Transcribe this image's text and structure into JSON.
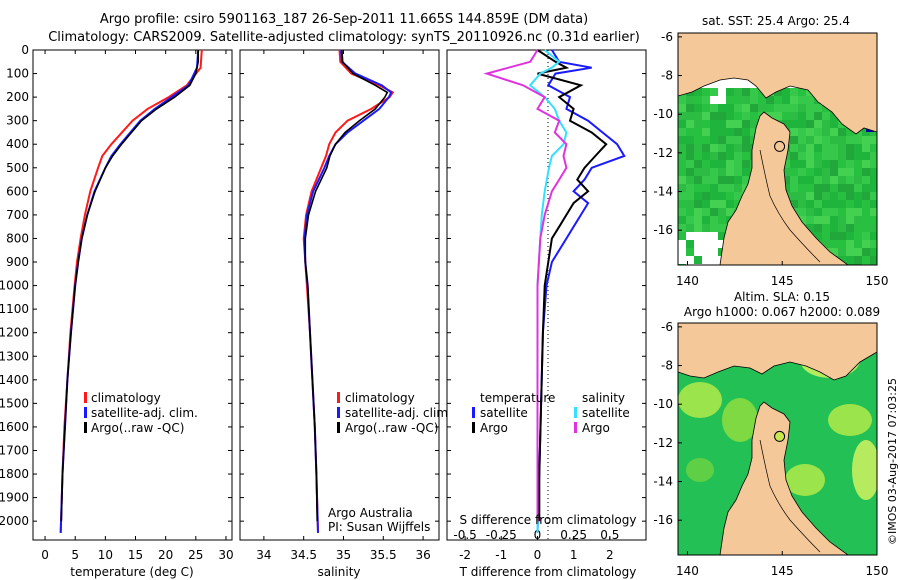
{
  "header": {
    "line1": "Argo profile: csiro 5901163_187 26-Sep-2011 11.665S 144.859E (DM data)",
    "line2": "Climatology: CARS2009. Satellite-adjusted climatology: synTS_20110926.nc (0.31d earlier)"
  },
  "colors": {
    "climatology": "#ff1a1a",
    "satellite": "#1a1aff",
    "argo": "#000000",
    "satellite_s": "#33e0ff",
    "argo_s": "#e033e0",
    "land": "#f5c89a",
    "sea_green": "#22c055",
    "sea_light": "#a8e84a"
  },
  "chart_data": [
    {
      "id": "temperature",
      "type": "line",
      "xlabel": "temperature (deg C)",
      "ylabel": "",
      "xlim": [
        -2,
        31
      ],
      "ylim": [
        2080,
        0
      ],
      "xticks": [
        0,
        5,
        10,
        15,
        20,
        25,
        30
      ],
      "yticks": [
        0,
        100,
        200,
        300,
        400,
        500,
        600,
        700,
        800,
        900,
        1000,
        1100,
        1200,
        1300,
        1400,
        1500,
        1600,
        1700,
        1800,
        1900,
        2000
      ],
      "legend": [
        "climatology",
        "satellite-adj. clim.",
        "Argo(..raw -QC)"
      ],
      "series": [
        {
          "name": "climatology",
          "depth": [
            0,
            75,
            150,
            200,
            250,
            300,
            400,
            450,
            500,
            600,
            700,
            800,
            900,
            1000,
            1200,
            1400,
            1600,
            1800,
            2050
          ],
          "values": [
            26,
            25.8,
            23.5,
            20.5,
            17,
            14.5,
            11,
            9.5,
            8.8,
            7.5,
            6.6,
            5.9,
            5.3,
            4.9,
            4.2,
            3.7,
            3.2,
            2.9,
            2.6
          ]
        },
        {
          "name": "satellite-adj. clim.",
          "depth": [
            0,
            75,
            150,
            200,
            250,
            300,
            400,
            450,
            500,
            600,
            700,
            800,
            900,
            1000,
            1200,
            1400,
            1600,
            1800,
            2050
          ],
          "values": [
            25.4,
            25.2,
            23.8,
            21,
            18.2,
            15.8,
            12.5,
            11,
            10,
            8.2,
            7,
            6.1,
            5.5,
            5,
            4.3,
            3.7,
            3.3,
            2.9,
            2.6
          ]
        },
        {
          "name": "Argo(..raw -QC)",
          "depth": [
            0,
            50,
            100,
            150,
            200,
            250,
            300,
            400,
            450,
            500,
            600,
            700,
            800,
            900,
            1000,
            1200,
            1400,
            1600,
            1800,
            2000
          ],
          "values": [
            25.4,
            25.4,
            25,
            24,
            21.5,
            18.5,
            16,
            12.7,
            11.2,
            10,
            8.3,
            7,
            6.1,
            5.5,
            5,
            4.3,
            3.7,
            3.3,
            2.9,
            2.7
          ]
        }
      ]
    },
    {
      "id": "salinity",
      "type": "line",
      "xlabel": "salinity",
      "xlim": [
        33.7,
        36.2
      ],
      "ylim": [
        2080,
        0
      ],
      "xticks": [
        34,
        34.5,
        35,
        35.5,
        36
      ],
      "legend": [
        "climatology",
        "satellite-adj. clim.",
        "Argo(..raw -QC)"
      ],
      "annotation": [
        "Argo Australia",
        "PI: Susan Wijffels"
      ],
      "series": [
        {
          "name": "climatology",
          "depth": [
            0,
            50,
            100,
            150,
            180,
            200,
            250,
            300,
            350,
            400,
            450,
            500,
            600,
            700,
            800,
            900,
            1000,
            1200,
            1400,
            1600,
            1800,
            2050
          ],
          "values": [
            34.95,
            34.96,
            35.1,
            35.45,
            35.62,
            35.58,
            35.35,
            35.05,
            34.9,
            34.82,
            34.78,
            34.72,
            34.6,
            34.53,
            34.5,
            34.52,
            34.54,
            34.58,
            34.61,
            34.64,
            34.66,
            34.68
          ]
        },
        {
          "name": "satellite-adj. clim.",
          "depth": [
            0,
            50,
            100,
            150,
            180,
            200,
            250,
            300,
            350,
            400,
            450,
            500,
            600,
            700,
            800,
            900,
            1000,
            1200,
            1400,
            1600,
            1800,
            2050
          ],
          "values": [
            34.97,
            34.98,
            35.15,
            35.48,
            35.6,
            35.57,
            35.45,
            35.25,
            35.05,
            34.9,
            34.82,
            34.76,
            34.62,
            34.54,
            34.51,
            34.52,
            34.55,
            34.58,
            34.61,
            34.64,
            34.66,
            34.68
          ]
        },
        {
          "name": "Argo(..raw -QC)",
          "depth": [
            0,
            50,
            100,
            150,
            180,
            200,
            250,
            300,
            350,
            400,
            450,
            500,
            600,
            700,
            800,
            900,
            1000,
            1200,
            1400,
            1600,
            1800,
            2000
          ],
          "values": [
            34.98,
            34.99,
            35.12,
            35.4,
            35.55,
            35.52,
            35.4,
            35.2,
            35.02,
            34.9,
            34.83,
            34.79,
            34.65,
            34.56,
            34.52,
            34.52,
            34.55,
            34.58,
            34.61,
            34.64,
            34.66,
            34.67
          ]
        }
      ]
    },
    {
      "id": "difference",
      "type": "line",
      "xlabel_top": "S difference from climatology",
      "xlabel": "T difference from climatology",
      "xlim_t": [
        -2.5,
        3
      ],
      "ylim": [
        2080,
        0
      ],
      "xticks_t": [
        -2,
        -1,
        0,
        1,
        2
      ],
      "xticks_s": [
        -0.5,
        -0.25,
        0,
        0.25,
        0.5
      ],
      "legend_t_title": "temperature",
      "legend_s_title": "salinity",
      "legend_t": [
        "satellite",
        "Argo"
      ],
      "legend_s": [
        "satellite",
        "Argo"
      ],
      "series": [
        {
          "name": "temperature satellite",
          "depth": [
            0,
            50,
            75,
            100,
            150,
            200,
            250,
            300,
            350,
            400,
            450,
            500,
            550,
            600,
            650,
            700,
            750,
            800,
            900,
            1000,
            1200,
            1500,
            1800,
            2050
          ],
          "values": [
            0.4,
            0.6,
            1.5,
            0.5,
            0.3,
            0.9,
            0.8,
            1.4,
            1.8,
            2.2,
            2.4,
            1.5,
            1.3,
            1.0,
            1.4,
            1.2,
            1.0,
            0.8,
            0.4,
            0.25,
            0.15,
            0.1,
            0.05,
            0
          ]
        },
        {
          "name": "temperature Argo",
          "depth": [
            0,
            50,
            75,
            100,
            150,
            200,
            250,
            300,
            350,
            400,
            450,
            500,
            550,
            600,
            650,
            700,
            750,
            800,
            900,
            1000,
            1200,
            1500,
            1800,
            2000
          ],
          "values": [
            0,
            0.5,
            0.8,
            0,
            1.2,
            0.6,
            1.0,
            0.9,
            1.5,
            1.9,
            1.6,
            1.3,
            1.1,
            1.4,
            1.0,
            0.8,
            0.6,
            0.4,
            0.3,
            0.2,
            0.15,
            0.1,
            0.05,
            0.05
          ]
        },
        {
          "name": "salinity satellite",
          "depth": [
            0,
            50,
            75,
            100,
            150,
            200,
            250,
            300,
            350,
            400,
            450,
            500,
            600,
            700,
            800,
            900,
            1000,
            1200,
            1500,
            1800,
            2050
          ],
          "values": [
            0.05,
            0.15,
            0.1,
            0.02,
            -0.05,
            0.05,
            0.12,
            0.15,
            0.2,
            0.18,
            0.1,
            0.08,
            0.05,
            0.03,
            0.02,
            0.01,
            0.0,
            0.0,
            0.0,
            0.0,
            0.0
          ]
        },
        {
          "name": "salinity Argo",
          "depth": [
            0,
            50,
            75,
            100,
            150,
            200,
            250,
            300,
            350,
            400,
            450,
            500,
            550,
            600,
            700,
            800,
            900,
            1000,
            1200,
            1500,
            1800,
            2000
          ],
          "values": [
            0.0,
            -0.05,
            -0.2,
            -0.35,
            -0.1,
            0.05,
            0.0,
            0.15,
            0.12,
            0.2,
            0.18,
            0.2,
            0.15,
            0.1,
            0.05,
            0.02,
            0.01,
            0.0,
            0.0,
            0.0,
            0.0,
            0.0
          ]
        }
      ]
    },
    {
      "id": "sst_map",
      "type": "heatmap",
      "title": "sat. SST: 25.4 Argo: 25.4",
      "xticks": [
        140,
        145,
        150
      ],
      "yticks": [
        -6,
        -8,
        -10,
        -12,
        -14,
        -16
      ],
      "xlim": [
        139.5,
        150
      ],
      "ylim": [
        -17.8,
        -5.8
      ],
      "argo_position": [
        144.86,
        -11.665
      ]
    },
    {
      "id": "sla_map",
      "type": "heatmap",
      "title_line1": "Altim. SLA: 0.15",
      "title_line2": "Argo h1000: 0.067 h2000: 0.089",
      "xticks": [
        140,
        145,
        150
      ],
      "yticks": [
        -6,
        -8,
        -10,
        -12,
        -14,
        -16
      ],
      "xlim": [
        139.5,
        150
      ],
      "ylim": [
        -17.8,
        -5.8
      ],
      "argo_position": [
        144.86,
        -11.665
      ]
    }
  ],
  "credit": "©IMOS 03-Aug-2017 07:03:25"
}
